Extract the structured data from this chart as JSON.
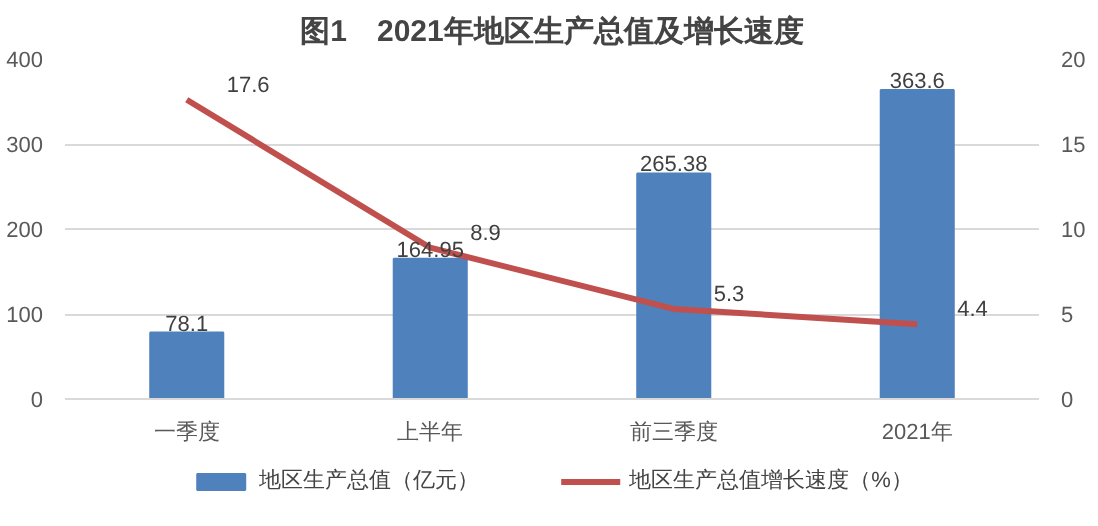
{
  "chart_data": {
    "type": "bar",
    "title": "图1　2021年地区生产总值及增长速度",
    "categories": [
      "一季度",
      "上半年",
      "前三季度",
      "2021年"
    ],
    "series": [
      {
        "name": "地区生产总值（亿元）",
        "color": "#4f81bd",
        "values": [
          78.1,
          164.95,
          265.38,
          363.6
        ]
      },
      {
        "name": "地区生产总值增长速度（%）",
        "type": "line",
        "axis": "y2",
        "color": "#c0504d",
        "values": [
          17.6,
          8.9,
          5.3,
          4.4
        ]
      }
    ],
    "ylim": [
      0,
      400
    ],
    "yticks": [
      0,
      100,
      200,
      300,
      400
    ],
    "y2lim": [
      0,
      20
    ],
    "y2ticks": [
      0,
      5,
      10,
      15,
      20
    ],
    "grid": "y",
    "legend": "bottom",
    "data_labels": true
  }
}
